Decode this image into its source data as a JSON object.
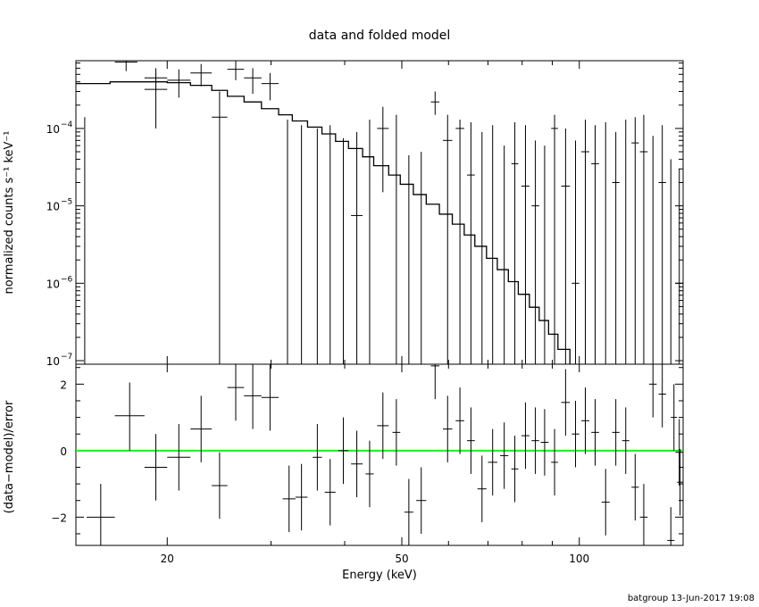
{
  "chart_data": [
    {
      "type": "line",
      "title": "data and folded model",
      "xlabel": "",
      "ylabel": "normalized counts s⁻¹ keV⁻¹",
      "x_scale": "log",
      "y_scale": "log",
      "xlim": [
        14.0,
        150.0
      ],
      "ylim": [
        9e-08,
        0.00075
      ],
      "y_tick_labels": [
        {
          "value": 1e-07,
          "mant": "10",
          "exp": "−7"
        },
        {
          "value": 1e-06,
          "mant": "10",
          "exp": "−6"
        },
        {
          "value": 1e-05,
          "mant": "10",
          "exp": "−5"
        },
        {
          "value": 0.0001,
          "mant": "10",
          "exp": "−4"
        }
      ],
      "data_points": [
        {
          "xlo": 14.0,
          "xhi": 15.0,
          "y": 1e-08,
          "ylo": 1e-09,
          "yhi": 0.00014
        },
        {
          "xlo": 16.3,
          "xhi": 17.8,
          "y": 0.00072,
          "ylo": 0.00055,
          "yhi": 0.00095
        },
        {
          "xlo": 18.3,
          "xhi": 20.0,
          "y": 0.00032,
          "ylo": 0.0001,
          "yhi": 0.00052
        },
        {
          "xlo": 18.3,
          "xhi": 20.0,
          "y": 0.00045,
          "ylo": 0.0003,
          "yhi": 0.0006
        },
        {
          "xlo": 20.0,
          "xhi": 21.9,
          "y": 0.00042,
          "ylo": 0.00025,
          "yhi": 0.00058
        },
        {
          "xlo": 21.9,
          "xhi": 23.8,
          "y": 0.00052,
          "ylo": 0.00035,
          "yhi": 0.00068
        },
        {
          "xlo": 23.8,
          "xhi": 25.3,
          "y": 0.00014,
          "ylo": 1e-09,
          "yhi": 0.0003
        },
        {
          "xlo": 25.3,
          "xhi": 27.0,
          "y": 0.00058,
          "ylo": 0.00042,
          "yhi": 0.00075
        },
        {
          "xlo": 27.0,
          "xhi": 28.9,
          "y": 0.00045,
          "ylo": 0.00028,
          "yhi": 0.0006
        },
        {
          "xlo": 28.9,
          "xhi": 30.9,
          "y": 0.00038,
          "ylo": 0.00023,
          "yhi": 0.00052
        },
        {
          "xlo": 31.4,
          "xhi": 32.6,
          "y": 1e-08,
          "ylo": 1e-09,
          "yhi": 0.00013
        },
        {
          "xlo": 33.0,
          "xhi": 34.6,
          "y": 1e-08,
          "ylo": 1e-09,
          "yhi": 0.00011
        },
        {
          "xlo": 35.3,
          "xhi": 36.6,
          "y": 1e-08,
          "ylo": 1e-09,
          "yhi": 0.0001
        },
        {
          "xlo": 37.0,
          "xhi": 38.6,
          "y": 1e-08,
          "ylo": 1e-09,
          "yhi": 0.00011
        },
        {
          "xlo": 39.0,
          "xhi": 40.6,
          "y": 1e-08,
          "ylo": 1e-09,
          "yhi": 7.5e-05
        },
        {
          "xlo": 41.0,
          "xhi": 42.9,
          "y": 7.5e-06,
          "ylo": 1e-09,
          "yhi": 9e-05
        },
        {
          "xlo": 43.4,
          "xhi": 44.8,
          "y": 1e-08,
          "ylo": 1e-09,
          "yhi": 0.00013
        },
        {
          "xlo": 45.4,
          "xhi": 47.5,
          "y": 0.0001,
          "ylo": 1.5e-05,
          "yhi": 0.00019
        },
        {
          "xlo": 48.2,
          "xhi": 49.7,
          "y": 1e-08,
          "ylo": 1e-09,
          "yhi": 0.00015
        },
        {
          "xlo": 50.5,
          "xhi": 52.3,
          "y": 1e-08,
          "ylo": 1e-09,
          "yhi": 4.5e-05
        },
        {
          "xlo": 52.9,
          "xhi": 55.0,
          "y": 1e-08,
          "ylo": 1e-09,
          "yhi": 5e-05
        },
        {
          "xlo": 56.0,
          "xhi": 57.9,
          "y": 0.00022,
          "ylo": 0.00015,
          "yhi": 0.0003
        },
        {
          "xlo": 58.7,
          "xhi": 60.9,
          "y": 7e-05,
          "ylo": 1e-09,
          "yhi": 0.00015
        },
        {
          "xlo": 61.7,
          "xhi": 63.8,
          "y": 0.0001,
          "ylo": 1e-09,
          "yhi": 0.00013
        },
        {
          "xlo": 64.5,
          "xhi": 66.5,
          "y": 2.5e-05,
          "ylo": 1e-09,
          "yhi": 0.00012
        },
        {
          "xlo": 67.2,
          "xhi": 69.6,
          "y": 1e-08,
          "ylo": 1e-09,
          "yhi": 9e-05
        },
        {
          "xlo": 70.0,
          "xhi": 72.6,
          "y": 1e-08,
          "ylo": 1e-09,
          "yhi": 0.00011
        },
        {
          "xlo": 73.4,
          "xhi": 75.8,
          "y": 1e-08,
          "ylo": 1e-09,
          "yhi": 6e-05
        },
        {
          "xlo": 76.7,
          "xhi": 78.8,
          "y": 3.5e-05,
          "ylo": 1e-09,
          "yhi": 0.00012
        },
        {
          "xlo": 79.8,
          "xhi": 82.3,
          "y": 1.8e-05,
          "ylo": 1e-09,
          "yhi": 0.00011
        },
        {
          "xlo": 83.0,
          "xhi": 85.5,
          "y": 1e-05,
          "ylo": 1e-09,
          "yhi": 7e-05
        },
        {
          "xlo": 86.0,
          "xhi": 88.7,
          "y": 1e-08,
          "ylo": 1e-09,
          "yhi": 6e-05
        },
        {
          "xlo": 89.6,
          "xhi": 92.0,
          "y": 0.0001,
          "ylo": 1e-09,
          "yhi": 0.00015
        },
        {
          "xlo": 93.2,
          "xhi": 96.4,
          "y": 1.8e-05,
          "ylo": 1e-09,
          "yhi": 0.0001
        },
        {
          "xlo": 97.1,
          "xhi": 100.0,
          "y": 1e-06,
          "ylo": 1e-09,
          "yhi": 7e-05
        },
        {
          "xlo": 100.8,
          "xhi": 104.0,
          "y": 5e-05,
          "ylo": 1e-09,
          "yhi": 0.00013
        },
        {
          "xlo": 104.8,
          "xhi": 108.0,
          "y": 3.5e-05,
          "ylo": 1e-09,
          "yhi": 0.00011
        },
        {
          "xlo": 109.1,
          "xhi": 112.6,
          "y": 1e-08,
          "ylo": 1e-09,
          "yhi": 0.00012
        },
        {
          "xlo": 113.7,
          "xhi": 117.0,
          "y": 2e-05,
          "ylo": 1e-09,
          "yhi": 9e-05
        },
        {
          "xlo": 118.2,
          "xhi": 121.6,
          "y": 1e-08,
          "ylo": 1e-09,
          "yhi": 0.00013
        },
        {
          "xlo": 122.6,
          "xhi": 126.2,
          "y": 6.5e-05,
          "ylo": 1e-09,
          "yhi": 0.00014
        },
        {
          "xlo": 126.7,
          "xhi": 130.6,
          "y": 5e-05,
          "ylo": 1e-09,
          "yhi": 0.00015
        },
        {
          "xlo": 131.4,
          "xhi": 135.3,
          "y": 1e-08,
          "ylo": 1e-09,
          "yhi": 8e-05
        },
        {
          "xlo": 136.3,
          "xhi": 140.3,
          "y": 2e-05,
          "ylo": 1e-09,
          "yhi": 0.00011
        },
        {
          "xlo": 141.0,
          "xhi": 145.0,
          "y": 1e-08,
          "ylo": 1e-09,
          "yhi": 4e-05
        },
        {
          "xlo": 145.6,
          "xhi": 150.0,
          "y": 1e-06,
          "ylo": 1e-09,
          "yhi": 3e-05
        }
      ],
      "model_steps": [
        {
          "x": 14.0,
          "y": 0.00038
        },
        {
          "x": 16.0,
          "y": 0.0004
        },
        {
          "x": 18.3,
          "y": 0.0004
        },
        {
          "x": 20.0,
          "y": 0.00039
        },
        {
          "x": 21.9,
          "y": 0.00036
        },
        {
          "x": 23.8,
          "y": 0.00031
        },
        {
          "x": 25.3,
          "y": 0.00026
        },
        {
          "x": 27.0,
          "y": 0.00022
        },
        {
          "x": 28.9,
          "y": 0.00018
        },
        {
          "x": 30.9,
          "y": 0.00015
        },
        {
          "x": 32.6,
          "y": 0.000125
        },
        {
          "x": 34.6,
          "y": 0.000104
        },
        {
          "x": 36.6,
          "y": 8.5e-05
        },
        {
          "x": 38.6,
          "y": 6.8e-05
        },
        {
          "x": 40.6,
          "y": 5.5e-05
        },
        {
          "x": 42.9,
          "y": 4.3e-05
        },
        {
          "x": 44.8,
          "y": 3.3e-05
        },
        {
          "x": 47.5,
          "y": 2.5e-05
        },
        {
          "x": 49.7,
          "y": 1.9e-05
        },
        {
          "x": 52.3,
          "y": 1.4e-05
        },
        {
          "x": 55.0,
          "y": 1.05e-05
        },
        {
          "x": 57.9,
          "y": 7.8e-06
        },
        {
          "x": 60.9,
          "y": 5.8e-06
        },
        {
          "x": 63.8,
          "y": 4.2e-06
        },
        {
          "x": 66.5,
          "y": 3e-06
        },
        {
          "x": 69.6,
          "y": 2.1e-06
        },
        {
          "x": 72.6,
          "y": 1.5e-06
        },
        {
          "x": 75.8,
          "y": 1.05e-06
        },
        {
          "x": 78.8,
          "y": 7.2e-07
        },
        {
          "x": 82.3,
          "y": 4.9e-07
        },
        {
          "x": 85.5,
          "y": 3.3e-07
        },
        {
          "x": 88.7,
          "y": 2.2e-07
        },
        {
          "x": 92.0,
          "y": 1.4e-07
        },
        {
          "x": 96.4,
          "y": 9e-08
        }
      ]
    },
    {
      "type": "line",
      "xlabel": "Energy (keV)",
      "ylabel": "(data−model)/error",
      "x_scale": "log",
      "y_scale": "linear",
      "xlim": [
        14.0,
        150.0
      ],
      "ylim": [
        -2.85,
        2.6
      ],
      "x_ticks": [
        20,
        50,
        100
      ],
      "y_ticks": [
        2,
        0,
        -2
      ],
      "zero_line_color": "#00ff00",
      "residuals": [
        {
          "xlo": 14.6,
          "xhi": 16.3,
          "y": -2.0,
          "ylo": -3.0,
          "yhi": -1.0
        },
        {
          "xlo": 16.3,
          "xhi": 18.3,
          "y": 1.05,
          "ylo": 0.0,
          "yhi": 2.05
        },
        {
          "xlo": 18.3,
          "xhi": 20.0,
          "y": -0.5,
          "ylo": -1.5,
          "yhi": 0.5
        },
        {
          "xlo": 20.0,
          "xhi": 21.9,
          "y": -0.2,
          "ylo": -1.2,
          "yhi": 0.8
        },
        {
          "xlo": 21.9,
          "xhi": 23.8,
          "y": 0.65,
          "ylo": -0.35,
          "yhi": 1.65
        },
        {
          "xlo": 23.8,
          "xhi": 25.3,
          "y": -1.05,
          "ylo": -2.05,
          "yhi": -0.05
        },
        {
          "xlo": 25.3,
          "xhi": 27.0,
          "y": 1.9,
          "ylo": 0.9,
          "yhi": 2.9
        },
        {
          "xlo": 27.0,
          "xhi": 28.9,
          "y": 1.65,
          "ylo": 0.65,
          "yhi": 2.65
        },
        {
          "xlo": 28.9,
          "xhi": 30.9,
          "y": 1.6,
          "ylo": 0.6,
          "yhi": 2.6
        },
        {
          "xlo": 31.4,
          "xhi": 33.0,
          "y": -1.45,
          "ylo": -2.45,
          "yhi": -0.45
        },
        {
          "xlo": 33.0,
          "xhi": 34.6,
          "y": -1.4,
          "ylo": -2.4,
          "yhi": -0.4
        },
        {
          "xlo": 35.3,
          "xhi": 36.6,
          "y": -0.2,
          "ylo": -1.2,
          "yhi": 0.8
        },
        {
          "xlo": 37.0,
          "xhi": 38.6,
          "y": -1.25,
          "ylo": -2.25,
          "yhi": -0.25
        },
        {
          "xlo": 39.0,
          "xhi": 40.6,
          "y": 0.0,
          "ylo": -1.0,
          "yhi": 1.0
        },
        {
          "xlo": 41.0,
          "xhi": 42.9,
          "y": -0.4,
          "ylo": -1.4,
          "yhi": 0.6
        },
        {
          "xlo": 43.4,
          "xhi": 44.8,
          "y": -0.7,
          "ylo": -1.7,
          "yhi": 0.3
        },
        {
          "xlo": 45.4,
          "xhi": 47.5,
          "y": 0.75,
          "ylo": -0.25,
          "yhi": 1.75
        },
        {
          "xlo": 48.2,
          "xhi": 49.7,
          "y": 0.55,
          "ylo": -0.45,
          "yhi": 1.55
        },
        {
          "xlo": 50.5,
          "xhi": 52.3,
          "y": -1.85,
          "ylo": -2.85,
          "yhi": -0.85
        },
        {
          "xlo": 52.9,
          "xhi": 55.0,
          "y": -1.5,
          "ylo": -2.5,
          "yhi": -0.5
        },
        {
          "xlo": 56.0,
          "xhi": 57.9,
          "y": 2.55,
          "ylo": 1.55,
          "yhi": 3.55
        },
        {
          "xlo": 58.7,
          "xhi": 60.9,
          "y": 0.65,
          "ylo": -0.35,
          "yhi": 1.65
        },
        {
          "xlo": 61.7,
          "xhi": 63.8,
          "y": 0.9,
          "ylo": -0.1,
          "yhi": 1.9
        },
        {
          "xlo": 64.5,
          "xhi": 66.5,
          "y": 0.3,
          "ylo": -0.7,
          "yhi": 1.3
        },
        {
          "xlo": 67.2,
          "xhi": 69.6,
          "y": -1.15,
          "ylo": -2.15,
          "yhi": -0.15
        },
        {
          "xlo": 70.0,
          "xhi": 72.6,
          "y": -0.35,
          "ylo": -1.35,
          "yhi": 0.65
        },
        {
          "xlo": 73.4,
          "xhi": 75.8,
          "y": -0.15,
          "ylo": -1.15,
          "yhi": 0.85
        },
        {
          "xlo": 76.7,
          "xhi": 78.8,
          "y": -0.55,
          "ylo": -1.55,
          "yhi": 0.45
        },
        {
          "xlo": 79.8,
          "xhi": 82.3,
          "y": 0.45,
          "ylo": -0.55,
          "yhi": 1.45
        },
        {
          "xlo": 83.0,
          "xhi": 85.5,
          "y": 0.3,
          "ylo": -0.7,
          "yhi": 1.3
        },
        {
          "xlo": 86.0,
          "xhi": 88.7,
          "y": 0.25,
          "ylo": -0.75,
          "yhi": 1.25
        },
        {
          "xlo": 89.6,
          "xhi": 92.0,
          "y": -0.35,
          "ylo": -1.35,
          "yhi": 0.65
        },
        {
          "xlo": 93.2,
          "xhi": 96.4,
          "y": 1.45,
          "ylo": 0.45,
          "yhi": 2.45
        },
        {
          "xlo": 97.1,
          "xhi": 100.0,
          "y": 0.5,
          "ylo": -0.5,
          "yhi": 1.5
        },
        {
          "xlo": 100.8,
          "xhi": 104.0,
          "y": 0.9,
          "ylo": -0.1,
          "yhi": 1.9
        },
        {
          "xlo": 104.8,
          "xhi": 108.0,
          "y": 0.55,
          "ylo": -0.45,
          "yhi": 1.55
        },
        {
          "xlo": 109.1,
          "xhi": 112.6,
          "y": -1.55,
          "ylo": -2.55,
          "yhi": -0.55
        },
        {
          "xlo": 113.7,
          "xhi": 117.0,
          "y": 0.55,
          "ylo": -0.45,
          "yhi": 1.55
        },
        {
          "xlo": 118.2,
          "xhi": 121.6,
          "y": 0.3,
          "ylo": -0.7,
          "yhi": 1.3
        },
        {
          "xlo": 122.6,
          "xhi": 126.2,
          "y": -1.1,
          "ylo": -2.1,
          "yhi": -0.1
        },
        {
          "xlo": 126.7,
          "xhi": 130.6,
          "y": -2.0,
          "ylo": -3.0,
          "yhi": -1.0
        },
        {
          "xlo": 131.4,
          "xhi": 135.3,
          "y": 2.0,
          "ylo": 1.0,
          "yhi": 3.0
        },
        {
          "xlo": 136.3,
          "xhi": 140.3,
          "y": 1.7,
          "ylo": 0.7,
          "yhi": 2.7
        },
        {
          "xlo": 141.0,
          "xhi": 145.0,
          "y": -2.7,
          "ylo": -3.7,
          "yhi": -1.7
        },
        {
          "xlo": 145.6,
          "xhi": 150.0,
          "y": -0.05,
          "ylo": -1.05,
          "yhi": 0.95
        },
        {
          "xlo": 143.0,
          "xhi": 146.5,
          "y": 1.0,
          "ylo": 0.0,
          "yhi": 2.0
        },
        {
          "xlo": 146.5,
          "xhi": 150.0,
          "y": -0.95,
          "ylo": -1.95,
          "yhi": 0.05
        }
      ]
    }
  ],
  "footer": "batgroup 13-Jun-2017 19:08"
}
